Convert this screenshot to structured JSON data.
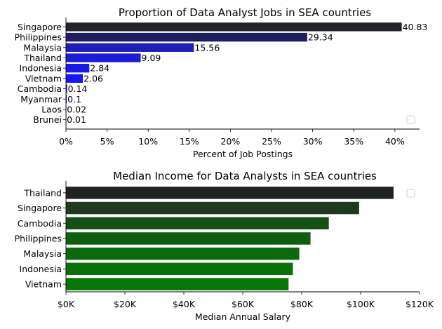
{
  "chart_data": [
    {
      "type": "bar",
      "orientation": "horizontal",
      "title": "Proportion of Data Analyst Jobs in SEA countries",
      "xlabel": "Percent of Job Postings",
      "ylabel": "",
      "xlim": [
        0,
        43
      ],
      "x_ticks": [
        "0%",
        "5%",
        "10%",
        "15%",
        "20%",
        "25%",
        "30%",
        "35%",
        "40%"
      ],
      "categories": [
        "Singapore",
        "Philippines",
        "Malaysia",
        "Thailand",
        "Indonesia",
        "Vietnam",
        "Cambodia",
        "Myanmar",
        "Laos",
        "Brunei"
      ],
      "values": [
        40.83,
        29.34,
        15.56,
        9.09,
        2.84,
        2.06,
        0.14,
        0.1,
        0.02,
        0.01
      ],
      "data_labels": [
        "40.83",
        "29.34",
        "15.56",
        "9.09",
        "2.84",
        "2.06",
        "0.14",
        "0.1",
        "0.02",
        "0.01"
      ],
      "colors": [
        "#23232a",
        "#1e1e5e",
        "#1f1fb8",
        "#1c1cd4",
        "#1a1ae6",
        "#1717ef",
        "#1515f4",
        "#1212f7",
        "#1010fa",
        "#0c0cfd"
      ],
      "legend": "bottom-right, empty",
      "grid": false
    },
    {
      "type": "bar",
      "orientation": "horizontal",
      "title": "Median Income for Data Analysts in SEA countries",
      "xlabel": "Median Annual Salary",
      "ylabel": "",
      "xlim": [
        0,
        120000
      ],
      "x_ticks": [
        "$0K",
        "$20K",
        "$40K",
        "$60K",
        "$80K",
        "$100K",
        "$120K"
      ],
      "categories": [
        "Thailand",
        "Singapore",
        "Cambodia",
        "Philippines",
        "Malaysia",
        "Indonesia",
        "Vietnam"
      ],
      "values": [
        111175,
        99500,
        89204,
        83000,
        79200,
        77017,
        75550
      ],
      "colors": [
        "#1f2420",
        "#1f3a1f",
        "#145014",
        "#0f5e0f",
        "#0c6a0c",
        "#0a700a",
        "#067606"
      ],
      "legend": "top-right, empty",
      "grid": false
    }
  ]
}
